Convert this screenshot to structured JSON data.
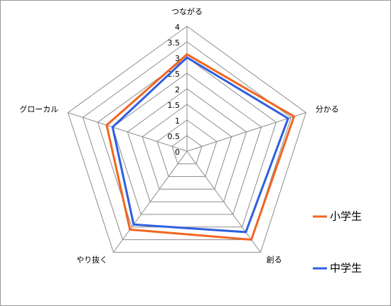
{
  "chart_data": {
    "type": "radar",
    "categories": [
      "つながる",
      "分かる",
      "創る",
      "やり抜く",
      "グローカル"
    ],
    "series": [
      {
        "name": "小学生",
        "color": "#f26522",
        "values": [
          3.1,
          3.6,
          3.5,
          3.1,
          2.7
        ]
      },
      {
        "name": "中学生",
        "color": "#2f5fe0",
        "values": [
          3.0,
          3.4,
          3.2,
          2.9,
          2.5
        ]
      }
    ],
    "ylim": [
      0,
      4
    ],
    "yticks": [
      0,
      0.5,
      1,
      1.5,
      2,
      2.5,
      3,
      3.5,
      4
    ],
    "grid": true,
    "legend": "right"
  }
}
